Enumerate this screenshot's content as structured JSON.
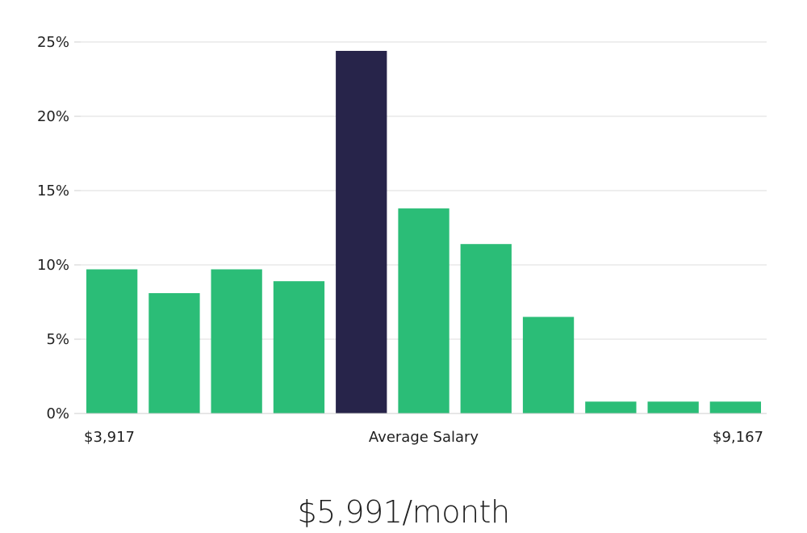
{
  "chart_data": {
    "type": "bar",
    "values": [
      9.7,
      8.1,
      9.7,
      8.9,
      24.4,
      13.8,
      11.4,
      6.5,
      0.8,
      0.8,
      0.8
    ],
    "highlight_index": 4,
    "ylim": [
      0,
      25
    ],
    "yticks": [
      0,
      5,
      10,
      15,
      20,
      25
    ],
    "ytick_suffix": "%",
    "grid": true,
    "x_min_label": "$3,917",
    "x_center_label": "Average Salary",
    "x_max_label": "$9,167",
    "colors": {
      "bar": "#2bbd77",
      "highlight": "#27244a",
      "grid": "#dcdcdc"
    }
  },
  "summary": {
    "text": "$5,991/month"
  }
}
